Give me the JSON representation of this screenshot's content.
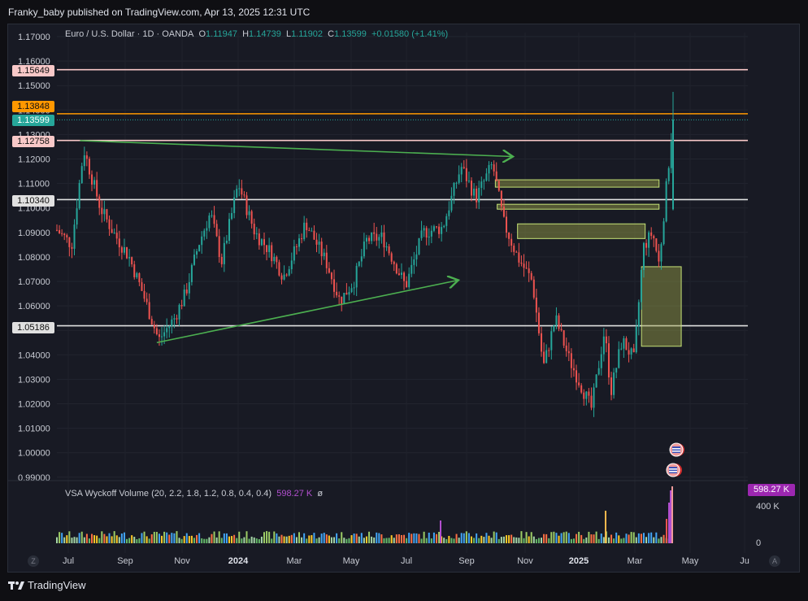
{
  "header": {
    "publisher_line": "Franky_baby published on TradingView.com, Apr 13, 2025 12:31 UTC"
  },
  "footer": {
    "brand": "TradingView"
  },
  "legend": {
    "symbol": "Euro / U.S. Dollar · 1D · OANDA",
    "o_label": "O",
    "o_value": "1.11947",
    "h_label": "H",
    "h_value": "1.14739",
    "l_label": "L",
    "l_value": "1.11902",
    "c_label": "C",
    "c_value": "1.13599",
    "change": "+0.01580 (+1.41%)"
  },
  "volume_legend": {
    "name": "VSA Wyckoff Volume (20, 2.2, 1.8, 1.2, 0.8, 0.4, 0.4)",
    "value": "598.27 K",
    "extra": "ø"
  },
  "volume_axis": {
    "tag": "598.27 K",
    "label_400k": "400 K",
    "label_0": "0"
  },
  "price_axis_labels": [
    "1.17000",
    "1.16000",
    "1.15000",
    "1.14000",
    "1.13000",
    "1.12000",
    "1.11000",
    "1.10000",
    "1.09000",
    "1.08000",
    "1.07000",
    "1.06000",
    "1.05000",
    "1.04000",
    "1.03000",
    "1.02000",
    "1.01000",
    "1.00000",
    "0.99000"
  ],
  "price_tags": {
    "t1": "1.15649",
    "t2": "1.13848",
    "t3": "1.13599",
    "t4": "1.12758",
    "t5": "1.10340",
    "t6": "1.05186"
  },
  "time_axis_labels": [
    "Jul",
    "Sep",
    "Nov",
    "2024",
    "Mar",
    "May",
    "Jul",
    "Sep",
    "Nov",
    "2025",
    "Mar",
    "May",
    "Ju"
  ],
  "bottom_buttons": {
    "left": "Z",
    "right": "A"
  },
  "colors": {
    "background": "#181a24",
    "bull": "#26a69a",
    "bear": "#ef5350",
    "resistance_pink": "#f8c8c8",
    "orange": "#ff9800",
    "white_line": "#e0e0e0",
    "arrow": "#4caf50",
    "zone_fill": "#9da34a",
    "zone_border": "#c6e377",
    "volume_spike": "#b24fcf"
  },
  "chart_data": {
    "type": "candlestick",
    "symbol": "EURUSD",
    "ylim": [
      0.99,
      1.17
    ],
    "horizontal_levels": [
      1.15649,
      1.13848,
      1.12758,
      1.1034,
      1.05186
    ],
    "last_close": 1.13599,
    "ohlc_last": {
      "open": 1.11947,
      "high": 1.14739,
      "low": 1.11902,
      "close": 1.13599,
      "change": 0.0158,
      "change_pct": 1.41
    },
    "price_path_keypoints": [
      [
        "2023-06-15",
        1.091
      ],
      [
        "2023-07-01",
        1.085
      ],
      [
        "2023-07-14",
        1.124
      ],
      [
        "2023-08-01",
        1.1
      ],
      [
        "2023-08-15",
        1.09
      ],
      [
        "2023-09-01",
        1.08
      ],
      [
        "2023-09-15",
        1.066
      ],
      [
        "2023-10-03",
        1.046
      ],
      [
        "2023-10-20",
        1.055
      ],
      [
        "2023-11-01",
        1.065
      ],
      [
        "2023-11-15",
        1.085
      ],
      [
        "2023-11-28",
        1.098
      ],
      [
        "2023-12-10",
        1.078
      ],
      [
        "2023-12-28",
        1.11
      ],
      [
        "2024-01-15",
        1.09
      ],
      [
        "2024-02-01",
        1.082
      ],
      [
        "2024-02-15",
        1.072
      ],
      [
        "2024-03-01",
        1.085
      ],
      [
        "2024-03-10",
        1.094
      ],
      [
        "2024-04-01",
        1.078
      ],
      [
        "2024-04-16",
        1.062
      ],
      [
        "2024-05-01",
        1.07
      ],
      [
        "2024-05-15",
        1.087
      ],
      [
        "2024-06-01",
        1.088
      ],
      [
        "2024-06-26",
        1.068
      ],
      [
        "2024-07-15",
        1.09
      ],
      [
        "2024-08-05",
        1.092
      ],
      [
        "2024-08-25",
        1.117
      ],
      [
        "2024-09-10",
        1.104
      ],
      [
        "2024-09-28",
        1.118
      ],
      [
        "2024-10-10",
        1.094
      ],
      [
        "2024-10-25",
        1.08
      ],
      [
        "2024-11-10",
        1.07
      ],
      [
        "2024-11-22",
        1.035
      ],
      [
        "2024-12-05",
        1.055
      ],
      [
        "2024-12-20",
        1.038
      ],
      [
        "2025-01-13",
        1.018
      ],
      [
        "2025-01-27",
        1.05
      ],
      [
        "2025-02-03",
        1.025
      ],
      [
        "2025-02-15",
        1.046
      ],
      [
        "2025-02-28",
        1.038
      ],
      [
        "2025-03-10",
        1.084
      ],
      [
        "2025-03-20",
        1.09
      ],
      [
        "2025-03-27",
        1.077
      ],
      [
        "2025-04-03",
        1.105
      ],
      [
        "2025-04-11",
        1.136
      ]
    ],
    "annotations": [
      {
        "type": "arrow",
        "from": [
          "2023-07-10",
          1.1275
        ],
        "to": [
          "2024-10-20",
          1.121
        ]
      },
      {
        "type": "arrow",
        "from": [
          "2023-10-01",
          1.045
        ],
        "to": [
          "2024-08-22",
          1.0705
        ]
      },
      {
        "type": "zone",
        "x": [
          "2024-10-01",
          "2025-03-27"
        ],
        "y": [
          1.1085,
          1.1115
        ]
      },
      {
        "type": "zone",
        "x": [
          "2024-10-03",
          "2025-03-27"
        ],
        "y": [
          1.0995,
          1.1015
        ]
      },
      {
        "type": "zone",
        "x": [
          "2024-10-25",
          "2025-03-12"
        ],
        "y": [
          1.0875,
          1.0935
        ]
      },
      {
        "type": "zone",
        "x": [
          "2025-03-08",
          "2025-04-20"
        ],
        "y": [
          1.0435,
          1.076
        ]
      }
    ],
    "volume": {
      "last": "598.27 K",
      "axis_ticks": [
        0,
        400000
      ]
    }
  }
}
